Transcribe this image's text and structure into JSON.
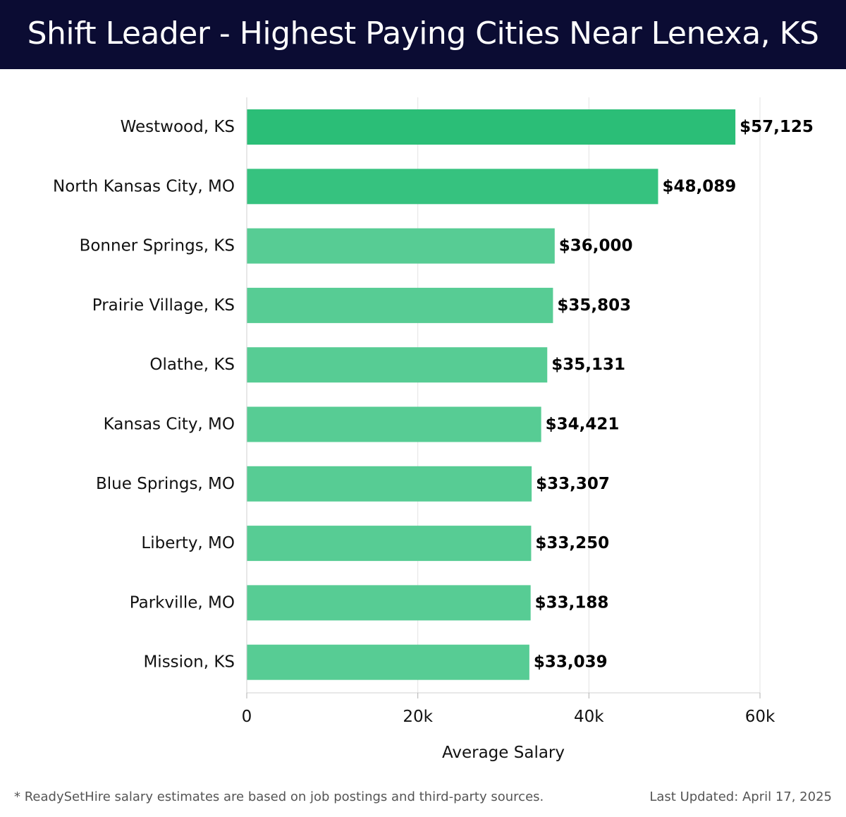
{
  "header": {
    "title": "Shift Leader - Highest Paying Cities Near Lenexa, KS"
  },
  "chart_data": {
    "type": "bar",
    "orientation": "horizontal",
    "title": "Shift Leader - Highest Paying Cities Near Lenexa, KS",
    "xlabel": "Average Salary",
    "ylabel": "",
    "xlim": [
      0,
      60000
    ],
    "x_ticks": [
      0,
      20000,
      40000,
      60000
    ],
    "x_tick_labels": [
      "0",
      "20k",
      "40k",
      "60k"
    ],
    "grid": true,
    "categories": [
      "Westwood, KS",
      "North Kansas City, MO",
      "Bonner Springs, KS",
      "Prairie Village, KS",
      "Olathe, KS",
      "Kansas City, MO",
      "Blue Springs, MO",
      "Liberty, MO",
      "Parkville, MO",
      "Mission, KS"
    ],
    "values": [
      57125,
      48089,
      36000,
      35803,
      35131,
      34421,
      33307,
      33250,
      33188,
      33039
    ],
    "value_labels": [
      "$57,125",
      "$48,089",
      "$36,000",
      "$35,803",
      "$35,131",
      "$34,421",
      "$33,307",
      "$33,250",
      "$33,188",
      "$33,039"
    ],
    "bar_colors": [
      "#2bbe77",
      "#36c27f",
      "#57cc94",
      "#57cc94",
      "#57cc94",
      "#57cc94",
      "#57cc94",
      "#57cc94",
      "#57cc94",
      "#57cc94"
    ]
  },
  "footer": {
    "note": "* ReadySetHire salary estimates are based on job postings and third-party sources.",
    "updated": "Last Updated: April 17, 2025"
  }
}
